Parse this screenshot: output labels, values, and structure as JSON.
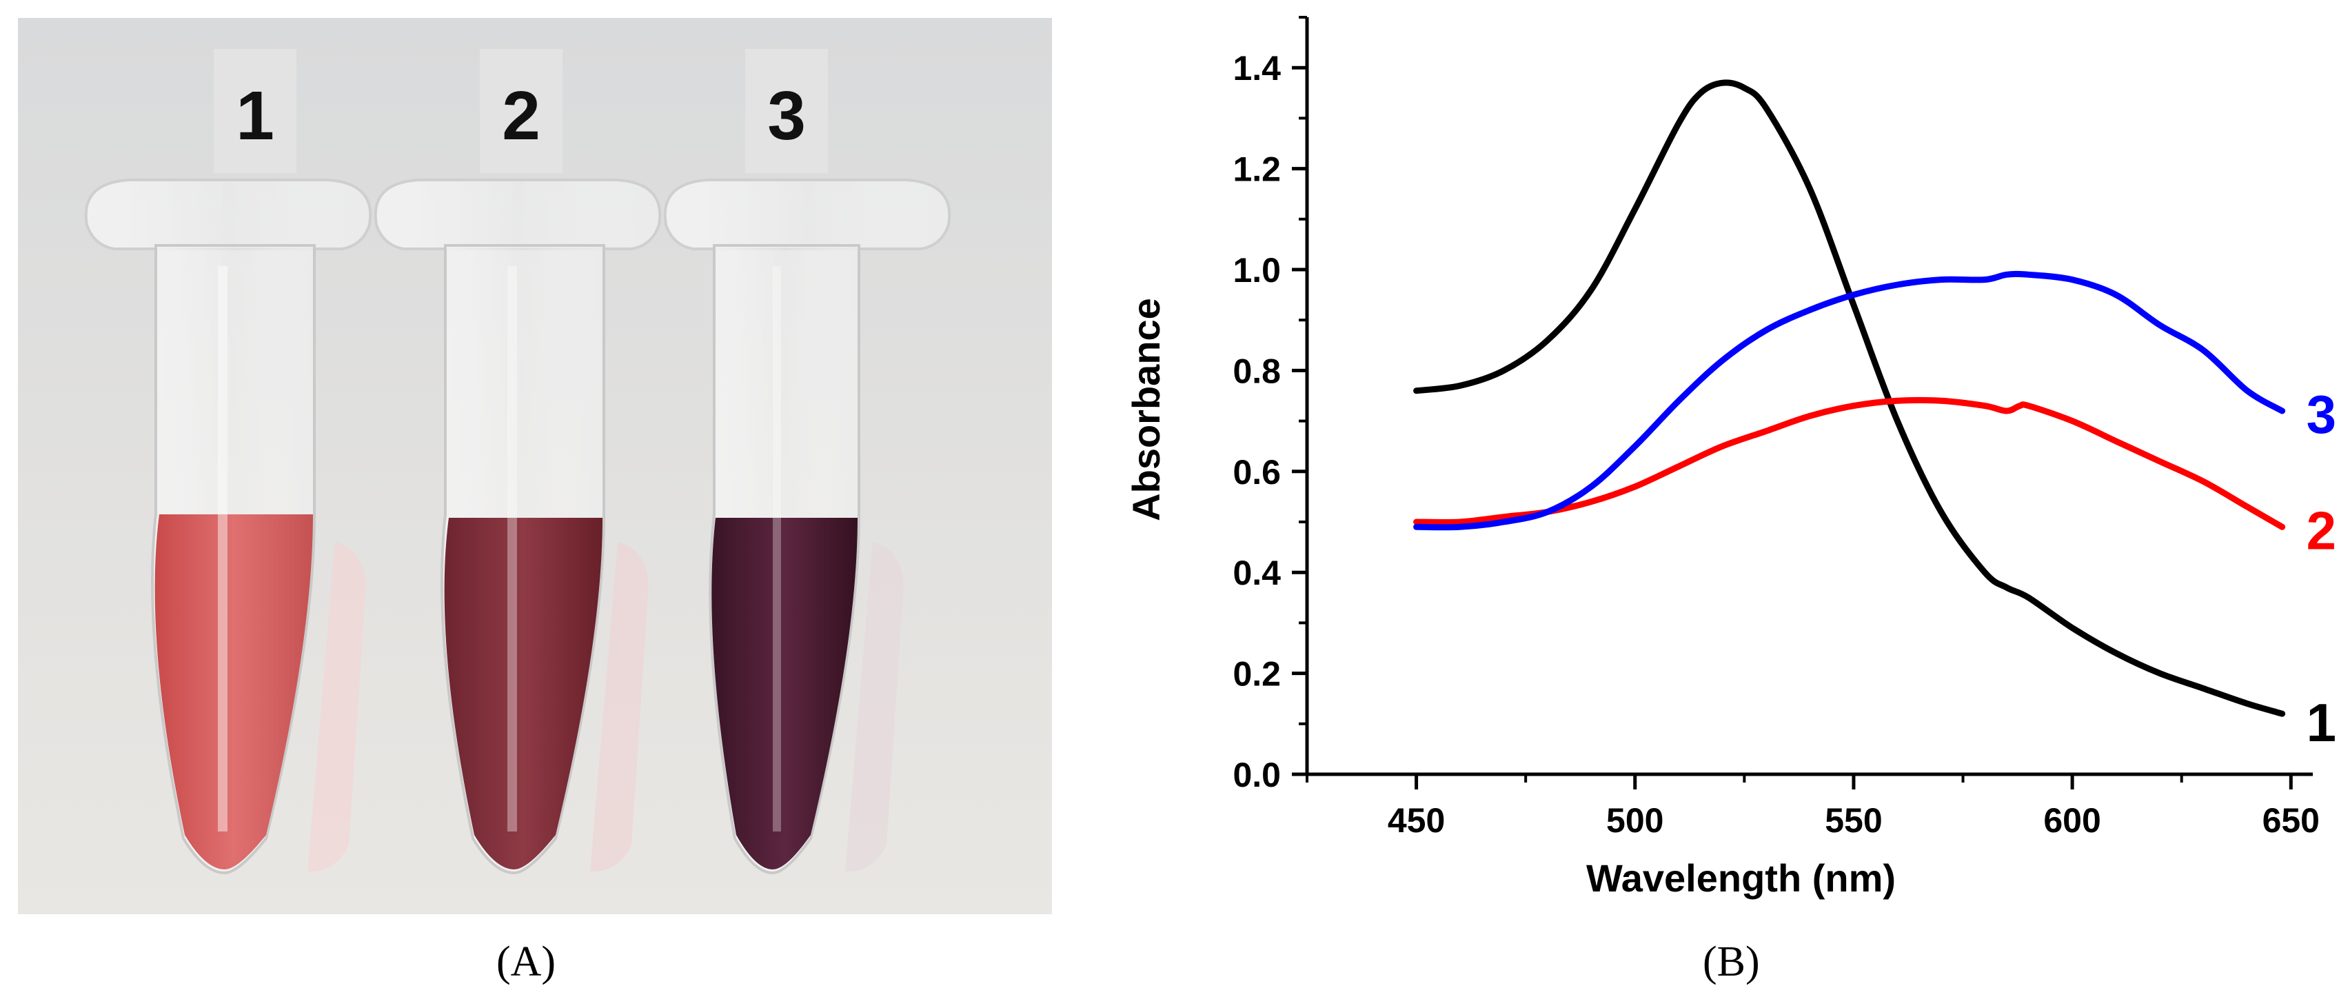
{
  "photo": {
    "tube_labels": [
      "1",
      "2",
      "3"
    ],
    "caption": "(A)"
  },
  "chart": {
    "caption": "(B)"
  },
  "chart_data": {
    "type": "line",
    "title": "",
    "xlabel": "Wavelength (nm)",
    "ylabel": "Absorbance",
    "xlim": [
      425,
      655
    ],
    "ylim": [
      0.0,
      1.5
    ],
    "xticks": [
      450,
      500,
      550,
      600,
      650
    ],
    "yticks": [
      0.0,
      0.2,
      0.4,
      0.6,
      0.8,
      1.0,
      1.2,
      1.4
    ],
    "xtick_labels": [
      "450",
      "500",
      "550",
      "600",
      "650"
    ],
    "ytick_labels": [
      "0.0",
      "0.2",
      "0.4",
      "0.6",
      "0.8",
      "1.0",
      "1.2",
      "1.4"
    ],
    "grid": false,
    "series": [
      {
        "name": "1",
        "color": "#000000",
        "x": [
          450,
          460,
          470,
          480,
          490,
          500,
          510,
          515,
          520,
          525,
          530,
          540,
          550,
          560,
          570,
          580,
          585,
          590,
          600,
          610,
          620,
          630,
          640,
          648
        ],
        "y": [
          0.76,
          0.77,
          0.8,
          0.86,
          0.96,
          1.12,
          1.29,
          1.35,
          1.37,
          1.36,
          1.32,
          1.16,
          0.93,
          0.7,
          0.52,
          0.4,
          0.37,
          0.35,
          0.29,
          0.24,
          0.2,
          0.17,
          0.14,
          0.12
        ]
      },
      {
        "name": "2",
        "color": "#ff0000",
        "x": [
          450,
          460,
          470,
          480,
          490,
          500,
          510,
          520,
          530,
          540,
          550,
          560,
          570,
          580,
          585,
          588,
          590,
          600,
          610,
          620,
          630,
          640,
          648
        ],
        "y": [
          0.5,
          0.5,
          0.51,
          0.52,
          0.54,
          0.57,
          0.61,
          0.65,
          0.68,
          0.71,
          0.73,
          0.74,
          0.74,
          0.73,
          0.72,
          0.73,
          0.73,
          0.7,
          0.66,
          0.62,
          0.58,
          0.53,
          0.49
        ]
      },
      {
        "name": "3",
        "color": "#0000ff",
        "x": [
          450,
          460,
          470,
          480,
          490,
          500,
          510,
          520,
          530,
          540,
          550,
          560,
          570,
          580,
          585,
          590,
          600,
          610,
          620,
          630,
          640,
          648
        ],
        "y": [
          0.49,
          0.49,
          0.5,
          0.52,
          0.57,
          0.65,
          0.74,
          0.82,
          0.88,
          0.92,
          0.95,
          0.97,
          0.98,
          0.98,
          0.99,
          0.99,
          0.98,
          0.95,
          0.89,
          0.84,
          0.76,
          0.72
        ]
      }
    ]
  }
}
